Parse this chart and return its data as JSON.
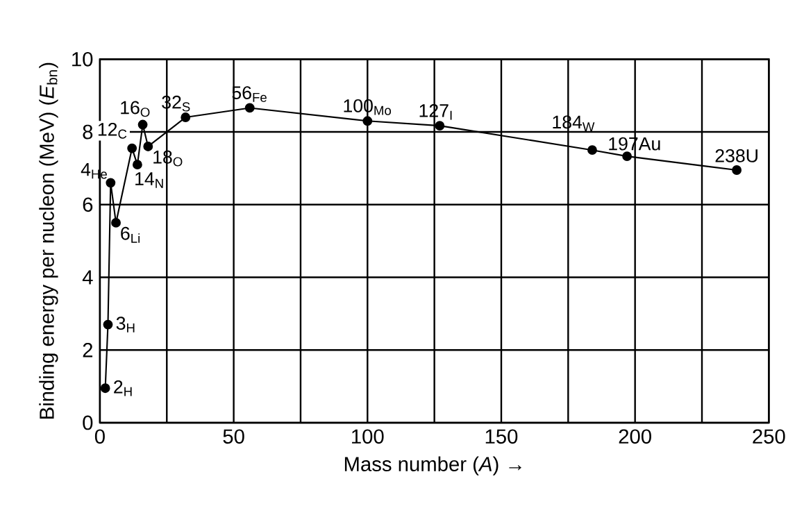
{
  "chart_data": {
    "type": "line",
    "xlabel": "Mass number (*A*) →",
    "ylabel": "Binding energy per nucleon (MeV) (*E*$_{bn}$)",
    "x": [
      2,
      3,
      4,
      6,
      12,
      14,
      16,
      18,
      32,
      56,
      100,
      127,
      184,
      197,
      238
    ],
    "series": [
      {
        "color": "#000000",
        "values": [
          0.95,
          2.7,
          6.6,
          5.5,
          7.55,
          7.1,
          8.2,
          7.6,
          8.4,
          8.66,
          8.3,
          8.17,
          7.5,
          7.33,
          6.95
        ]
      }
    ],
    "xlim": [
      0,
      250
    ],
    "ylim": [
      0,
      10
    ],
    "xticks": [
      0,
      {
        "value": 25,
        "label": null
      },
      50,
      {
        "value": 75,
        "label": null
      },
      100,
      {
        "value": 125,
        "label": null
      },
      150,
      {
        "value": 175,
        "label": null
      },
      200,
      {
        "value": 225,
        "label": null
      },
      250
    ],
    "yticks": [
      0,
      2,
      4,
      6,
      8,
      10
    ],
    "grid": true,
    "marker": "circle",
    "line_style": "solid",
    "annotations": [
      {
        "text": "2$_{H}$",
        "x": 2,
        "y": 0.95
      },
      {
        "text": "3$_{H}$",
        "x": 3,
        "y": 2.7
      },
      {
        "text": "4$_{He}$",
        "x": 4,
        "y": 6.6
      },
      {
        "text": "6$_{Li}$",
        "x": 6,
        "y": 5.5
      },
      {
        "text": "12$_{C}$",
        "x": 12,
        "y": 7.55
      },
      {
        "text": "14$_{N}$",
        "x": 14,
        "y": 7.1
      },
      {
        "text": "16$_{O}$",
        "x": 16,
        "y": 8.2
      },
      {
        "text": "18$_{O}$",
        "x": 18,
        "y": 7.6
      },
      {
        "text": "32$_{S}$",
        "x": 32,
        "y": 8.4
      },
      {
        "text": "56$_{Fe}$",
        "x": 56,
        "y": 8.66
      },
      {
        "text": "100$_{Mo}$",
        "x": 100,
        "y": 8.3
      },
      {
        "text": "127$_{I}$",
        "x": 127,
        "y": 8.17
      },
      {
        "text": "184$_{W}$",
        "x": 184,
        "y": 7.5
      },
      {
        "text": "197Au",
        "x": 197,
        "y": 7.33
      },
      {
        "text": "238U",
        "x": 238,
        "y": 6.95
      }
    ]
  }
}
